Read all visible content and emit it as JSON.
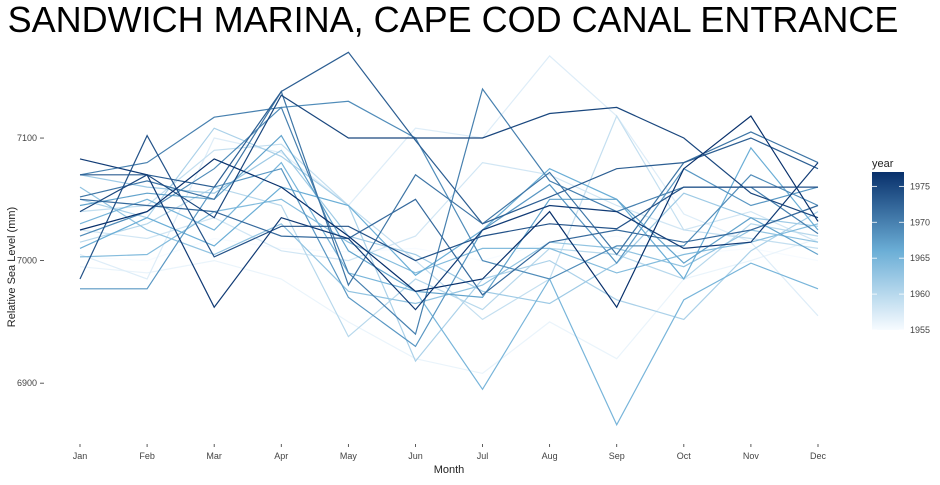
{
  "chart_data": {
    "type": "line",
    "title": "SANDWICH MARINA, CAPE COD CANAL ENTRANCE",
    "xlabel": "Month",
    "ylabel": "Relative Sea Level (mm)",
    "categories": [
      "Jan",
      "Feb",
      "Mar",
      "Apr",
      "May",
      "Jun",
      "Jul",
      "Aug",
      "Sep",
      "Oct",
      "Nov",
      "Dec"
    ],
    "ylim": [
      6852,
      7180
    ],
    "yticks": [
      6900,
      7000,
      7100
    ],
    "grid": false,
    "legend": {
      "title": "year",
      "position": "right",
      "range": [
        1955,
        1977
      ],
      "ticks": [
        1955,
        1960,
        1965,
        1970,
        1975
      ],
      "low_color": "#f7fbff",
      "high_color": "#08306b"
    },
    "series": [
      {
        "year": 1955,
        "values": [
          7003,
          7000,
          7018,
          7010,
          7007,
          7010,
          7000,
          7015,
          7020,
          7005,
          7010,
          7000
        ]
      },
      {
        "year": 1956,
        "values": [
          6995,
          6990,
          7000,
          6985,
          6950,
          6920,
          6908,
          6950,
          6920,
          6985,
          7000,
          7018
        ]
      },
      {
        "year": 1957,
        "values": [
          7005,
          6985,
          7100,
          7088,
          7045,
          7108,
          7100,
          7167,
          7118,
          7038,
          7015,
          6955
        ]
      },
      {
        "year": 1958,
        "values": [
          7025,
          7018,
          7035,
          7008,
          7000,
          7020,
          7080,
          7070,
          7045,
          7025,
          7040,
          7015
        ]
      },
      {
        "year": 1959,
        "values": [
          7040,
          7045,
          7090,
          7095,
          7045,
          7000,
          6952,
          6985,
          7118,
          7025,
          7018,
          7010
        ]
      },
      {
        "year": 1960,
        "values": [
          7015,
          7030,
          7060,
          7045,
          6938,
          6985,
          6960,
          7010,
          7005,
          6985,
          7030,
          7020
        ]
      },
      {
        "year": 1961,
        "values": [
          7050,
          7035,
          7108,
          7085,
          7045,
          6918,
          6985,
          7000,
          6968,
          6952,
          7008,
          7040
        ]
      },
      {
        "year": 1962,
        "values": [
          7070,
          7060,
          7055,
          7090,
          7020,
          7005,
          6975,
          6965,
          6998,
          7055,
          7035,
          7028
        ]
      },
      {
        "year": 1963,
        "values": [
          7060,
          7025,
          7005,
          7030,
          6975,
          6965,
          6980,
          7015,
          7010,
          6995,
          7025,
          7015
        ]
      },
      {
        "year": 1964,
        "values": [
          7003,
          7005,
          7040,
          7050,
          7015,
          6990,
          7010,
          7010,
          6990,
          7005,
          7015,
          7030
        ]
      },
      {
        "year": 1965,
        "values": [
          7030,
          7050,
          7025,
          7080,
          6990,
          6975,
          6895,
          6985,
          6866,
          6968,
          6998,
          6977
        ]
      },
      {
        "year": 1966,
        "values": [
          7010,
          7035,
          7012,
          7060,
          7045,
          6988,
          7025,
          7075,
          7050,
          6985,
          7092,
          7025
        ]
      },
      {
        "year": 1967,
        "values": [
          7045,
          7055,
          7050,
          7102,
          7008,
          6975,
          6970,
          7050,
          7050,
          6998,
          7035,
          7005
        ]
      },
      {
        "year": 1968,
        "values": [
          6977,
          6977,
          7060,
          7075,
          6970,
          6930,
          7025,
          7062,
          6998,
          7075,
          7045,
          7060
        ]
      },
      {
        "year": 1969,
        "values": [
          7020,
          7040,
          7075,
          7125,
          7130,
          7100,
          7000,
          6985,
          7012,
          7012,
          7070,
          7045
        ]
      },
      {
        "year": 1970,
        "values": [
          7070,
          7080,
          7117,
          7125,
          6990,
          6940,
          7140,
          7065,
          7040,
          7060,
          7060,
          7022
        ]
      },
      {
        "year": 1971,
        "values": [
          7052,
          7065,
          7050,
          7138,
          6980,
          7070,
          7030,
          7072,
          7005,
          7080,
          7105,
          7080
        ]
      },
      {
        "year": 1972,
        "values": [
          7050,
          7045,
          7040,
          7020,
          7018,
          7050,
          6972,
          7015,
          7025,
          7015,
          7025,
          7045
        ]
      },
      {
        "year": 1973,
        "values": [
          7070,
          7070,
          7060,
          7138,
          7170,
          7098,
          7030,
          7052,
          7075,
          7080,
          7100,
          7075
        ]
      },
      {
        "year": 1974,
        "values": [
          6985,
          7102,
          7003,
          7028,
          7028,
          7000,
          7020,
          7030,
          7026,
          7060,
          7060,
          7060
        ]
      },
      {
        "year": 1975,
        "values": [
          7040,
          7070,
          7035,
          7135,
          7100,
          7100,
          7100,
          7120,
          7125,
          7100,
          7055,
          7035
        ]
      },
      {
        "year": 1976,
        "values": [
          7083,
          7070,
          6962,
          7035,
          7018,
          6960,
          7025,
          7045,
          7040,
          7010,
          7015,
          7080
        ]
      },
      {
        "year": 1977,
        "values": [
          7025,
          7040,
          7083,
          7060,
          7020,
          6975,
          6985,
          7040,
          6962,
          7075,
          7118,
          7032
        ]
      }
    ]
  }
}
